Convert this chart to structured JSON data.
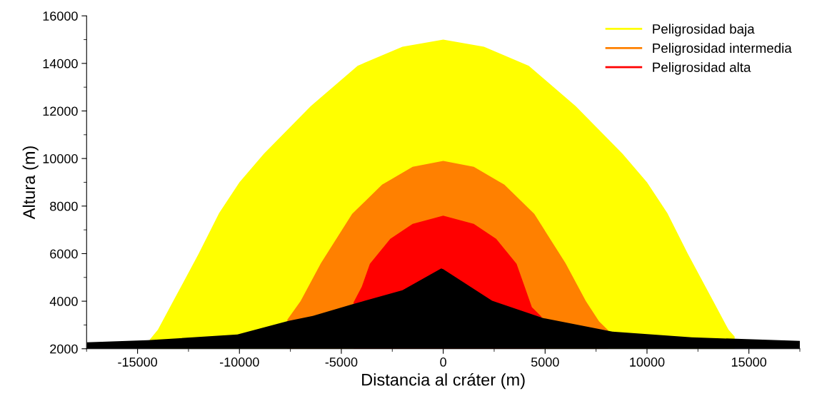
{
  "chart_data": {
    "type": "area",
    "xlabel": "Distancia al cráter (m)",
    "ylabel": "Altura (m)",
    "xlim": [
      -17500,
      17500
    ],
    "xticks": [
      -15000,
      -10000,
      -5000,
      0,
      5000,
      10000,
      15000
    ],
    "ylim": [
      2000,
      16000
    ],
    "yticks": [
      2000,
      4000,
      6000,
      8000,
      10000,
      12000,
      14000,
      16000
    ],
    "grid": false,
    "legend": "top right",
    "series": [
      {
        "name": "Peligrosidad baja",
        "color": "#ffff00",
        "x": [
          -14400,
          -14000,
          -13250,
          -12000,
          -11000,
          -10000,
          -8800,
          -6500,
          -4200,
          -2000,
          0,
          2000,
          4200,
          6500,
          8800,
          10000,
          11000,
          12000,
          13250,
          14000,
          14300
        ],
        "values": [
          2380,
          2800,
          4000,
          6000,
          7700,
          9000,
          10200,
          12200,
          13900,
          14700,
          15000,
          14700,
          13900,
          12200,
          10200,
          9000,
          7700,
          6000,
          4000,
          2800,
          2510
        ]
      },
      {
        "name": "Peligrosidad intermedia",
        "color": "#ff8000",
        "x": [
          -7650,
          -7000,
          -6000,
          -4470,
          -3000,
          -1500,
          0,
          1500,
          3000,
          4470,
          6000,
          7000,
          7650,
          8090
        ],
        "values": [
          3220,
          4000,
          5600,
          7670,
          8900,
          9650,
          9900,
          9650,
          8900,
          7670,
          5600,
          4000,
          3150,
          2780
        ]
      },
      {
        "name": "Peligrosidad alta",
        "color": "#ff0000",
        "x": [
          -4400,
          -4000,
          -3600,
          -2600,
          -1500,
          0,
          1500,
          2600,
          3600,
          4000,
          4350,
          4820
        ],
        "values": [
          3950,
          4600,
          5570,
          6620,
          7250,
          7600,
          7250,
          6620,
          5570,
          4600,
          3750,
          3350
        ]
      },
      {
        "color": "#000000",
        "x": [
          -17500,
          -14500,
          -10100,
          -7600,
          -6400,
          -4500,
          -2000,
          -100,
          0,
          2400,
          4900,
          8300,
          12200,
          17500
        ],
        "values": [
          2270,
          2360,
          2600,
          3170,
          3380,
          3860,
          4460,
          5380,
          5350,
          4020,
          3290,
          2720,
          2480,
          2330
        ]
      }
    ]
  }
}
